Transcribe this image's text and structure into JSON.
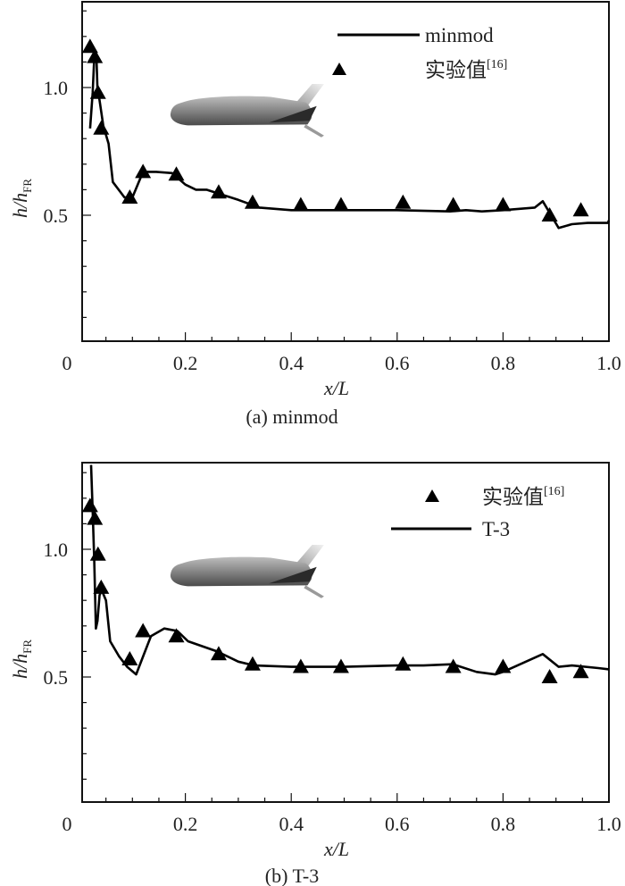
{
  "chart_data": [
    {
      "id": "a",
      "type": "line",
      "caption": "(a) minmod",
      "xlabel": "x/L",
      "ylabel_main": "h/h",
      "ylabel_sub": "FR",
      "xlim": [
        0.02,
        1.0
      ],
      "ylim": [
        0.0,
        1.33
      ],
      "xticks": [
        {
          "v": 0,
          "label": "0"
        },
        {
          "v": 0.2,
          "label": "0.2"
        },
        {
          "v": 0.4,
          "label": "0.4"
        },
        {
          "v": 0.6,
          "label": "0.6"
        },
        {
          "v": 0.8,
          "label": "0.8"
        },
        {
          "v": 1.0,
          "label": "1.0"
        }
      ],
      "yticks": [
        {
          "v": 0.5,
          "label": "0.5"
        },
        {
          "v": 1.0,
          "label": "1.0"
        }
      ],
      "legend": {
        "position": "top-right",
        "entries": [
          {
            "kind": "line",
            "label": "minmod",
            "sup": ""
          },
          {
            "kind": "marker",
            "label": "实验值",
            "sup": "[16]"
          }
        ]
      },
      "series": [
        {
          "name": "minmod",
          "kind": "line",
          "points": [
            [
              0.02,
              0.84
            ],
            [
              0.025,
              0.98
            ],
            [
              0.028,
              1.12
            ],
            [
              0.032,
              1.12
            ],
            [
              0.034,
              0.99
            ],
            [
              0.038,
              0.95
            ],
            [
              0.045,
              0.85
            ],
            [
              0.055,
              0.78
            ],
            [
              0.063,
              0.63
            ],
            [
              0.085,
              0.57
            ],
            [
              0.1,
              0.57
            ],
            [
              0.12,
              0.67
            ],
            [
              0.145,
              0.67
            ],
            [
              0.175,
              0.665
            ],
            [
              0.2,
              0.62
            ],
            [
              0.22,
              0.6
            ],
            [
              0.24,
              0.6
            ],
            [
              0.3,
              0.56
            ],
            [
              0.34,
              0.53
            ],
            [
              0.4,
              0.52
            ],
            [
              0.5,
              0.52
            ],
            [
              0.6,
              0.52
            ],
            [
              0.7,
              0.515
            ],
            [
              0.73,
              0.52
            ],
            [
              0.76,
              0.515
            ],
            [
              0.8,
              0.52
            ],
            [
              0.86,
              0.53
            ],
            [
              0.875,
              0.555
            ],
            [
              0.905,
              0.45
            ],
            [
              0.93,
              0.465
            ],
            [
              0.96,
              0.47
            ],
            [
              0.998,
              0.47
            ],
            [
              1.0,
              0.48
            ]
          ]
        },
        {
          "name": "实验值[16]",
          "kind": "marker",
          "points": [
            [
              0.02,
              1.16
            ],
            [
              0.029,
              1.12
            ],
            [
              0.035,
              0.98
            ],
            [
              0.041,
              0.84
            ],
            [
              0.095,
              0.57
            ],
            [
              0.12,
              0.67
            ],
            [
              0.183,
              0.66
            ],
            [
              0.263,
              0.59
            ],
            [
              0.327,
              0.55
            ],
            [
              0.418,
              0.54
            ],
            [
              0.494,
              0.54
            ],
            [
              0.611,
              0.55
            ],
            [
              0.706,
              0.54
            ],
            [
              0.8,
              0.54
            ],
            [
              0.888,
              0.5
            ],
            [
              0.947,
              0.52
            ]
          ]
        }
      ]
    },
    {
      "id": "b",
      "type": "line",
      "caption": "(b) T-3",
      "xlabel": "x/L",
      "ylabel_main": "h/h",
      "ylabel_sub": "FR",
      "xlim": [
        0.02,
        1.0
      ],
      "ylim": [
        0.0,
        1.33
      ],
      "xticks": [
        {
          "v": 0,
          "label": "0"
        },
        {
          "v": 0.2,
          "label": "0.2"
        },
        {
          "v": 0.4,
          "label": "0.4"
        },
        {
          "v": 0.6,
          "label": "0.6"
        },
        {
          "v": 0.8,
          "label": "0.8"
        },
        {
          "v": 1.0,
          "label": "1.0"
        }
      ],
      "yticks": [
        {
          "v": 0.5,
          "label": "0.5"
        },
        {
          "v": 1.0,
          "label": "1.0"
        }
      ],
      "legend": {
        "position": "top-right",
        "entries": [
          {
            "kind": "marker",
            "label": "实验值",
            "sup": "[16]"
          },
          {
            "kind": "line",
            "label": "T-3",
            "sup": ""
          }
        ]
      },
      "series": [
        {
          "name": "T-3",
          "kind": "line",
          "points": [
            [
              0.022,
              1.33
            ],
            [
              0.025,
              1.15
            ],
            [
              0.028,
              0.95
            ],
            [
              0.031,
              0.69
            ],
            [
              0.034,
              0.72
            ],
            [
              0.038,
              0.82
            ],
            [
              0.042,
              0.84
            ],
            [
              0.05,
              0.8
            ],
            [
              0.058,
              0.64
            ],
            [
              0.075,
              0.58
            ],
            [
              0.09,
              0.54
            ],
            [
              0.107,
              0.51
            ],
            [
              0.12,
              0.58
            ],
            [
              0.135,
              0.66
            ],
            [
              0.16,
              0.69
            ],
            [
              0.185,
              0.68
            ],
            [
              0.205,
              0.64
            ],
            [
              0.26,
              0.6
            ],
            [
              0.3,
              0.56
            ],
            [
              0.33,
              0.545
            ],
            [
              0.4,
              0.54
            ],
            [
              0.5,
              0.54
            ],
            [
              0.6,
              0.545
            ],
            [
              0.65,
              0.545
            ],
            [
              0.705,
              0.55
            ],
            [
              0.75,
              0.52
            ],
            [
              0.785,
              0.51
            ],
            [
              0.8,
              0.52
            ],
            [
              0.875,
              0.59
            ],
            [
              0.905,
              0.54
            ],
            [
              0.93,
              0.545
            ],
            [
              0.98,
              0.535
            ],
            [
              1.0,
              0.53
            ]
          ]
        },
        {
          "name": "实验值[16]",
          "kind": "marker",
          "points": [
            [
              0.02,
              1.17
            ],
            [
              0.029,
              1.12
            ],
            [
              0.035,
              0.98
            ],
            [
              0.041,
              0.85
            ],
            [
              0.095,
              0.57
            ],
            [
              0.12,
              0.68
            ],
            [
              0.183,
              0.66
            ],
            [
              0.263,
              0.59
            ],
            [
              0.327,
              0.55
            ],
            [
              0.418,
              0.54
            ],
            [
              0.494,
              0.54
            ],
            [
              0.611,
              0.55
            ],
            [
              0.706,
              0.54
            ],
            [
              0.8,
              0.54
            ],
            [
              0.888,
              0.5
            ],
            [
              0.947,
              0.52
            ]
          ]
        }
      ]
    }
  ],
  "inset_image": {
    "icon": "spaceplane-model-icon",
    "description": "grey 3D spaceplane model"
  }
}
